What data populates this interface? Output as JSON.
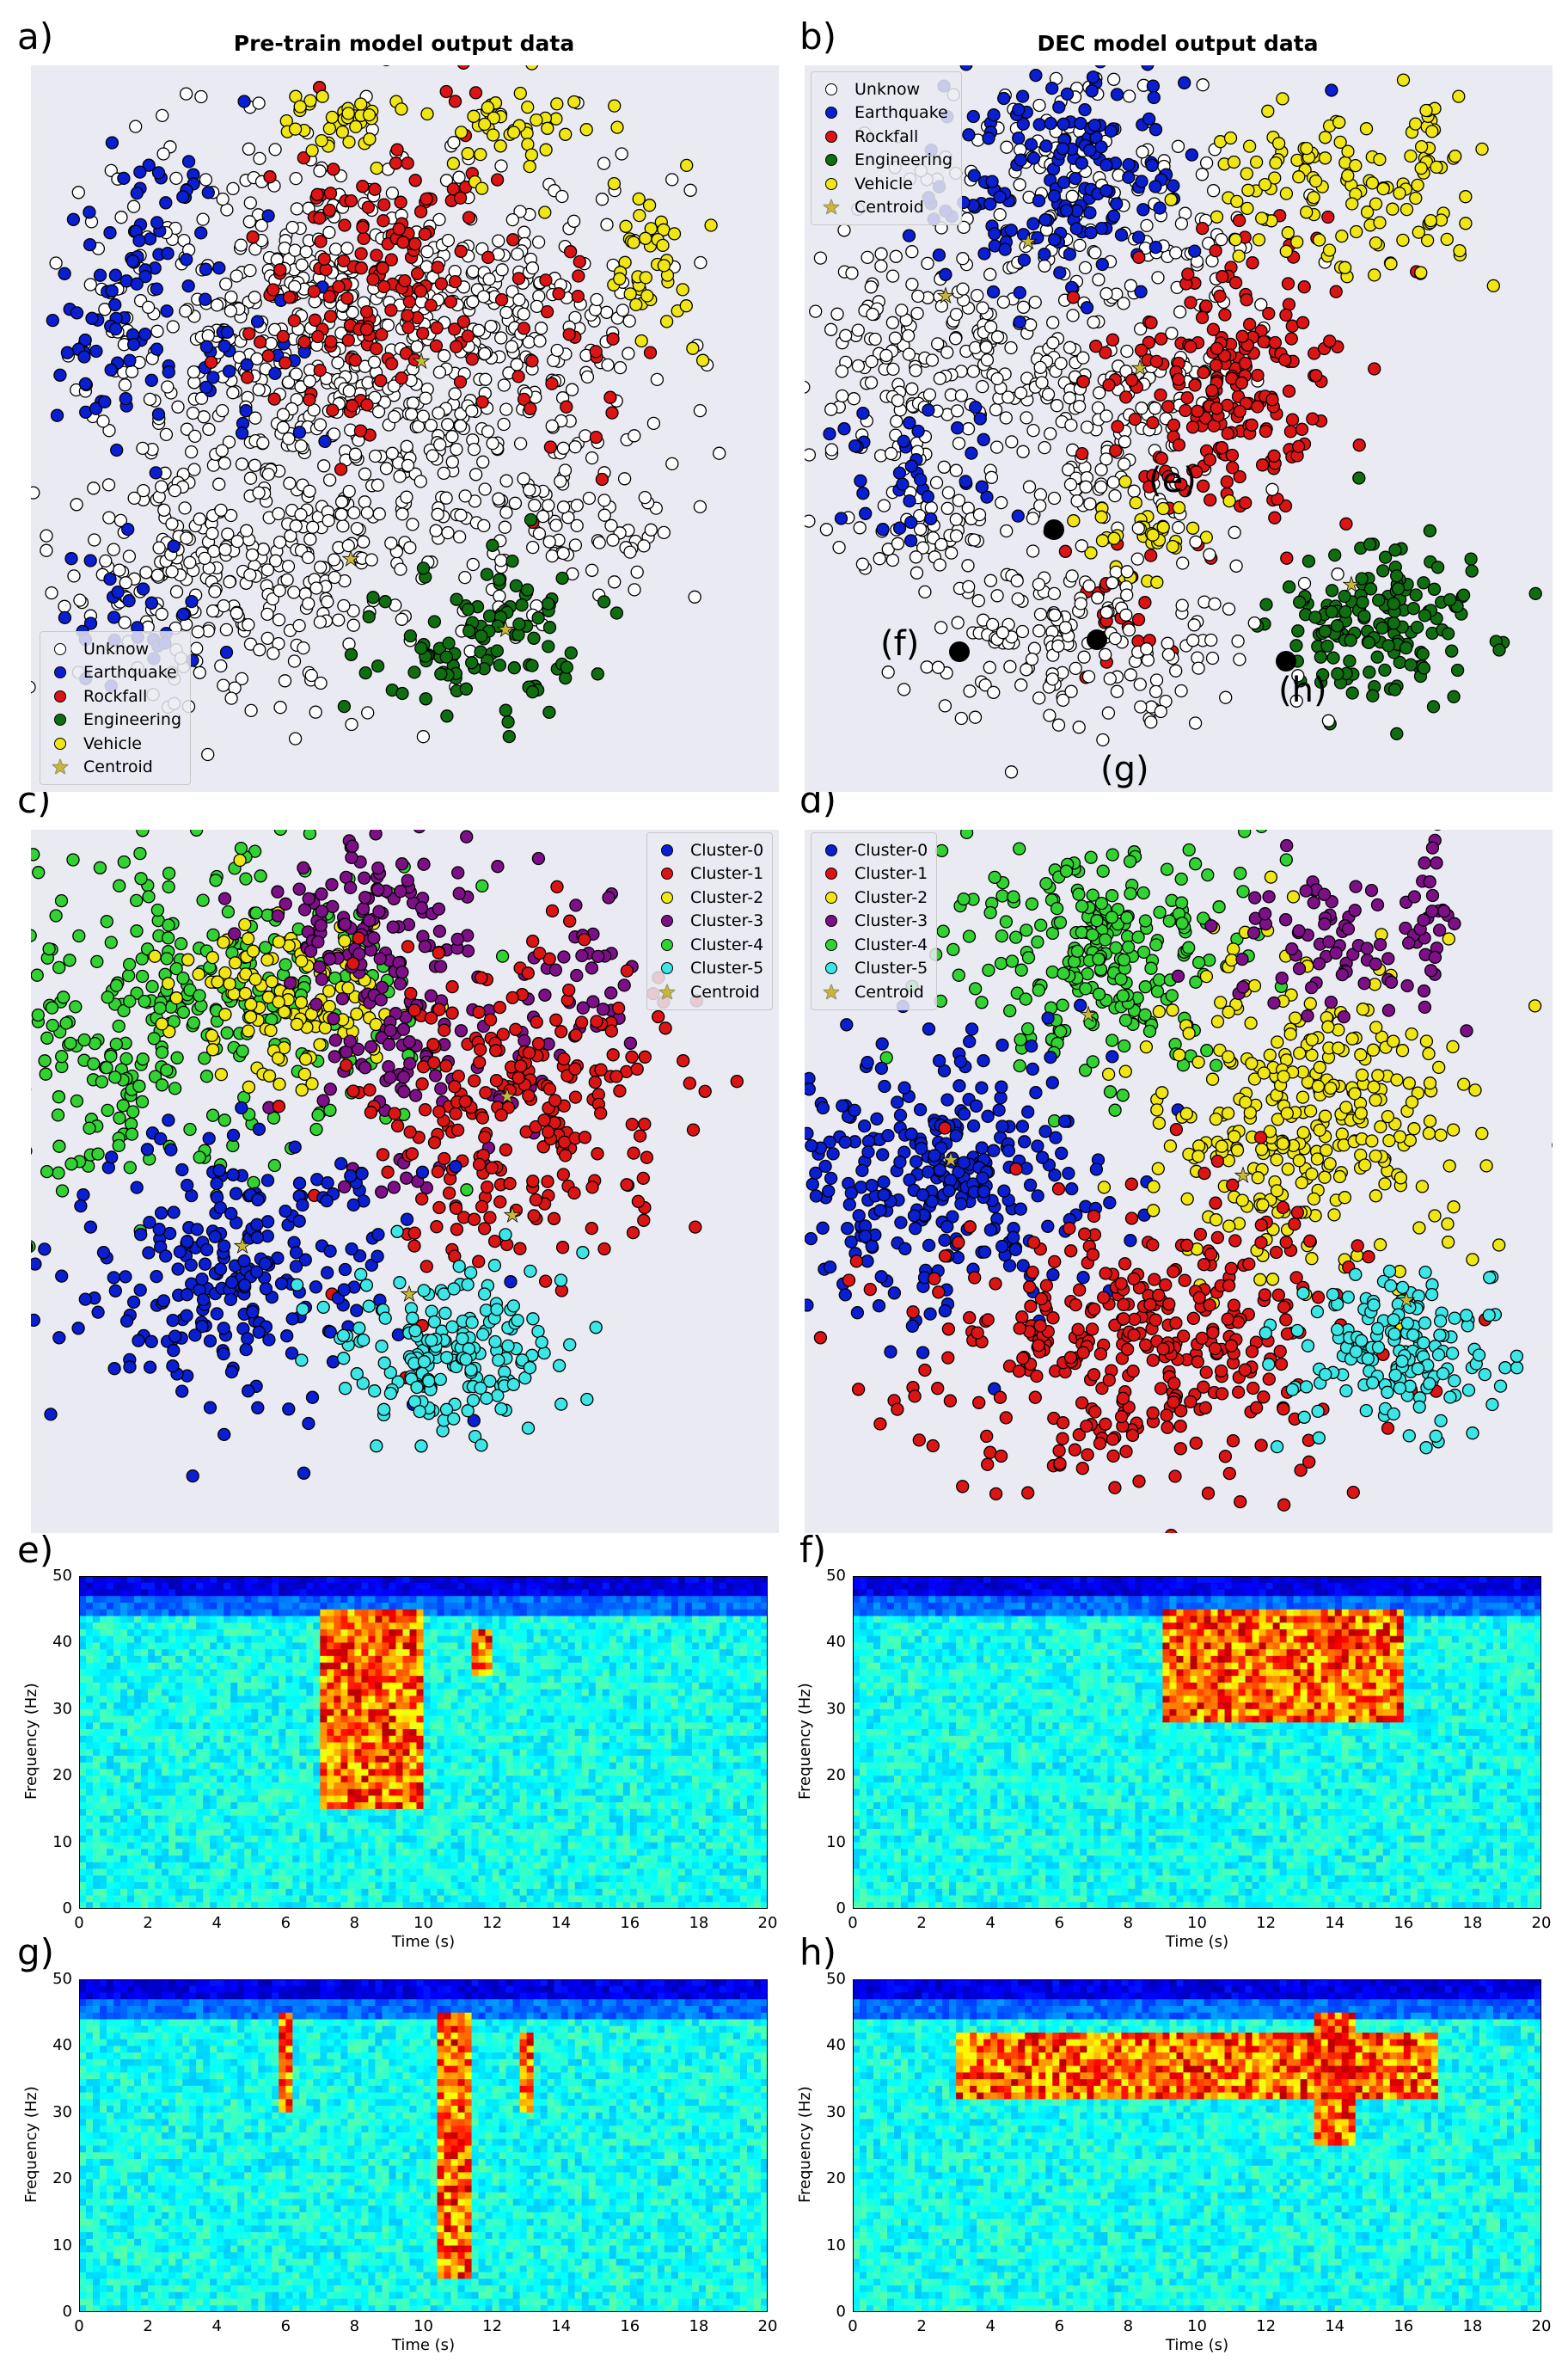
{
  "panels": {
    "a": {
      "letter": "a)",
      "title": "Pre-train model output data"
    },
    "b": {
      "letter": "b)",
      "title": "DEC model output data"
    },
    "c": {
      "letter": "c)"
    },
    "d": {
      "letter": "d)"
    },
    "e": {
      "letter": "e)"
    },
    "f": {
      "letter": "f)"
    },
    "g": {
      "letter": "g)"
    },
    "h": {
      "letter": "h)"
    }
  },
  "class_legend": [
    {
      "label": "Unknow",
      "color": "#ffffff"
    },
    {
      "label": "Earthquake",
      "color": "#0a1ed2"
    },
    {
      "label": "Rockfall",
      "color": "#dc1414"
    },
    {
      "label": "Engineering",
      "color": "#0f6e0f"
    },
    {
      "label": "Vehicle",
      "color": "#f0e614"
    },
    {
      "label": "Centroid",
      "color": "#c8b83a",
      "icon": "star-icon"
    }
  ],
  "cluster_legend": [
    {
      "label": "Cluster-0",
      "color": "#0a1ed2"
    },
    {
      "label": "Cluster-1",
      "color": "#dc1414"
    },
    {
      "label": "Cluster-2",
      "color": "#f0e614"
    },
    {
      "label": "Cluster-3",
      "color": "#7d0f87"
    },
    {
      "label": "Cluster-4",
      "color": "#32d232"
    },
    {
      "label": "Cluster-5",
      "color": "#3ce6e6"
    },
    {
      "label": "Centroid",
      "color": "#c8b83a",
      "icon": "star-icon"
    }
  ],
  "annotations": {
    "e": "(e)",
    "f": "(f)",
    "g": "(g)",
    "h": "(h)"
  },
  "chart_data": [
    {
      "panel": "a",
      "type": "scatter",
      "title": "Pre-train model output data",
      "series": [
        {
          "name": "Unknow",
          "dominant_region": "center / lower-left"
        },
        {
          "name": "Earthquake",
          "dominant_region": "left"
        },
        {
          "name": "Rockfall",
          "dominant_region": "center"
        },
        {
          "name": "Engineering",
          "dominant_region": "bottom-center"
        },
        {
          "name": "Vehicle",
          "dominant_region": "top / right edge"
        }
      ],
      "legend": "lower-left"
    },
    {
      "panel": "b",
      "type": "scatter",
      "title": "DEC model output data",
      "series": [
        {
          "name": "Unknow"
        },
        {
          "name": "Earthquake"
        },
        {
          "name": "Rockfall"
        },
        {
          "name": "Engineering"
        },
        {
          "name": "Vehicle"
        }
      ],
      "legend": "top-left",
      "annotations": [
        "(e)",
        "(f)",
        "(g)",
        "(h)"
      ]
    },
    {
      "panel": "c",
      "type": "scatter",
      "series": [
        {
          "name": "Cluster-0"
        },
        {
          "name": "Cluster-1"
        },
        {
          "name": "Cluster-2"
        },
        {
          "name": "Cluster-3"
        },
        {
          "name": "Cluster-4"
        },
        {
          "name": "Cluster-5"
        }
      ],
      "legend": "top-right"
    },
    {
      "panel": "d",
      "type": "scatter",
      "series": [
        {
          "name": "Cluster-0"
        },
        {
          "name": "Cluster-1"
        },
        {
          "name": "Cluster-2"
        },
        {
          "name": "Cluster-3"
        },
        {
          "name": "Cluster-4"
        },
        {
          "name": "Cluster-5"
        }
      ],
      "legend": "top-left"
    },
    {
      "panel": "e",
      "type": "heatmap",
      "xlabel": "Time (s)",
      "ylabel": "Frequency (Hz)",
      "xlim": [
        0,
        20
      ],
      "ylim": [
        0,
        50
      ],
      "xticks": [
        "0",
        "2",
        "4",
        "6",
        "8",
        "10",
        "12",
        "14",
        "16",
        "18",
        "20"
      ],
      "yticks": [
        "0",
        "10",
        "20",
        "30",
        "40",
        "50"
      ],
      "energy_events": [
        {
          "t_start": 7,
          "t_end": 10,
          "f_low": 15,
          "f_high": 45
        },
        {
          "t_start": 11.5,
          "t_end": 12,
          "f_low": 35,
          "f_high": 42
        }
      ]
    },
    {
      "panel": "f",
      "type": "heatmap",
      "xlabel": "Time (s)",
      "ylabel": "Frequency (Hz)",
      "xlim": [
        0,
        20
      ],
      "ylim": [
        0,
        50
      ],
      "xticks": [
        "0",
        "2",
        "4",
        "6",
        "8",
        "10",
        "12",
        "14",
        "16",
        "18",
        "20"
      ],
      "yticks": [
        "0",
        "10",
        "20",
        "30",
        "40",
        "50"
      ],
      "energy_events": [
        {
          "t_start": 9,
          "t_end": 16,
          "f_low": 28,
          "f_high": 45
        }
      ]
    },
    {
      "panel": "g",
      "type": "heatmap",
      "xlabel": "Time (s)",
      "ylabel": "Frequency (Hz)",
      "xlim": [
        0,
        20
      ],
      "ylim": [
        0,
        50
      ],
      "xticks": [
        "0",
        "2",
        "4",
        "6",
        "8",
        "10",
        "12",
        "14",
        "16",
        "18",
        "20"
      ],
      "yticks": [
        "0",
        "10",
        "20",
        "30",
        "40",
        "50"
      ],
      "energy_events": [
        {
          "t_start": 5.7,
          "t_end": 6.2,
          "f_low": 30,
          "f_high": 45
        },
        {
          "t_start": 10.5,
          "t_end": 11.3,
          "f_low": 5,
          "f_high": 45
        },
        {
          "t_start": 12.8,
          "t_end": 13.2,
          "f_low": 30,
          "f_high": 42
        }
      ]
    },
    {
      "panel": "h",
      "type": "heatmap",
      "xlabel": "Time (s)",
      "ylabel": "Frequency (Hz)",
      "xlim": [
        0,
        20
      ],
      "ylim": [
        0,
        50
      ],
      "xticks": [
        "0",
        "2",
        "4",
        "6",
        "8",
        "10",
        "12",
        "14",
        "16",
        "18",
        "20"
      ],
      "yticks": [
        "0",
        "10",
        "20",
        "30",
        "40",
        "50"
      ],
      "energy_events": [
        {
          "t_start": 3,
          "t_end": 17,
          "f_low": 32,
          "f_high": 42
        },
        {
          "t_start": 13.5,
          "t_end": 14.5,
          "f_low": 25,
          "f_high": 45
        }
      ]
    }
  ]
}
